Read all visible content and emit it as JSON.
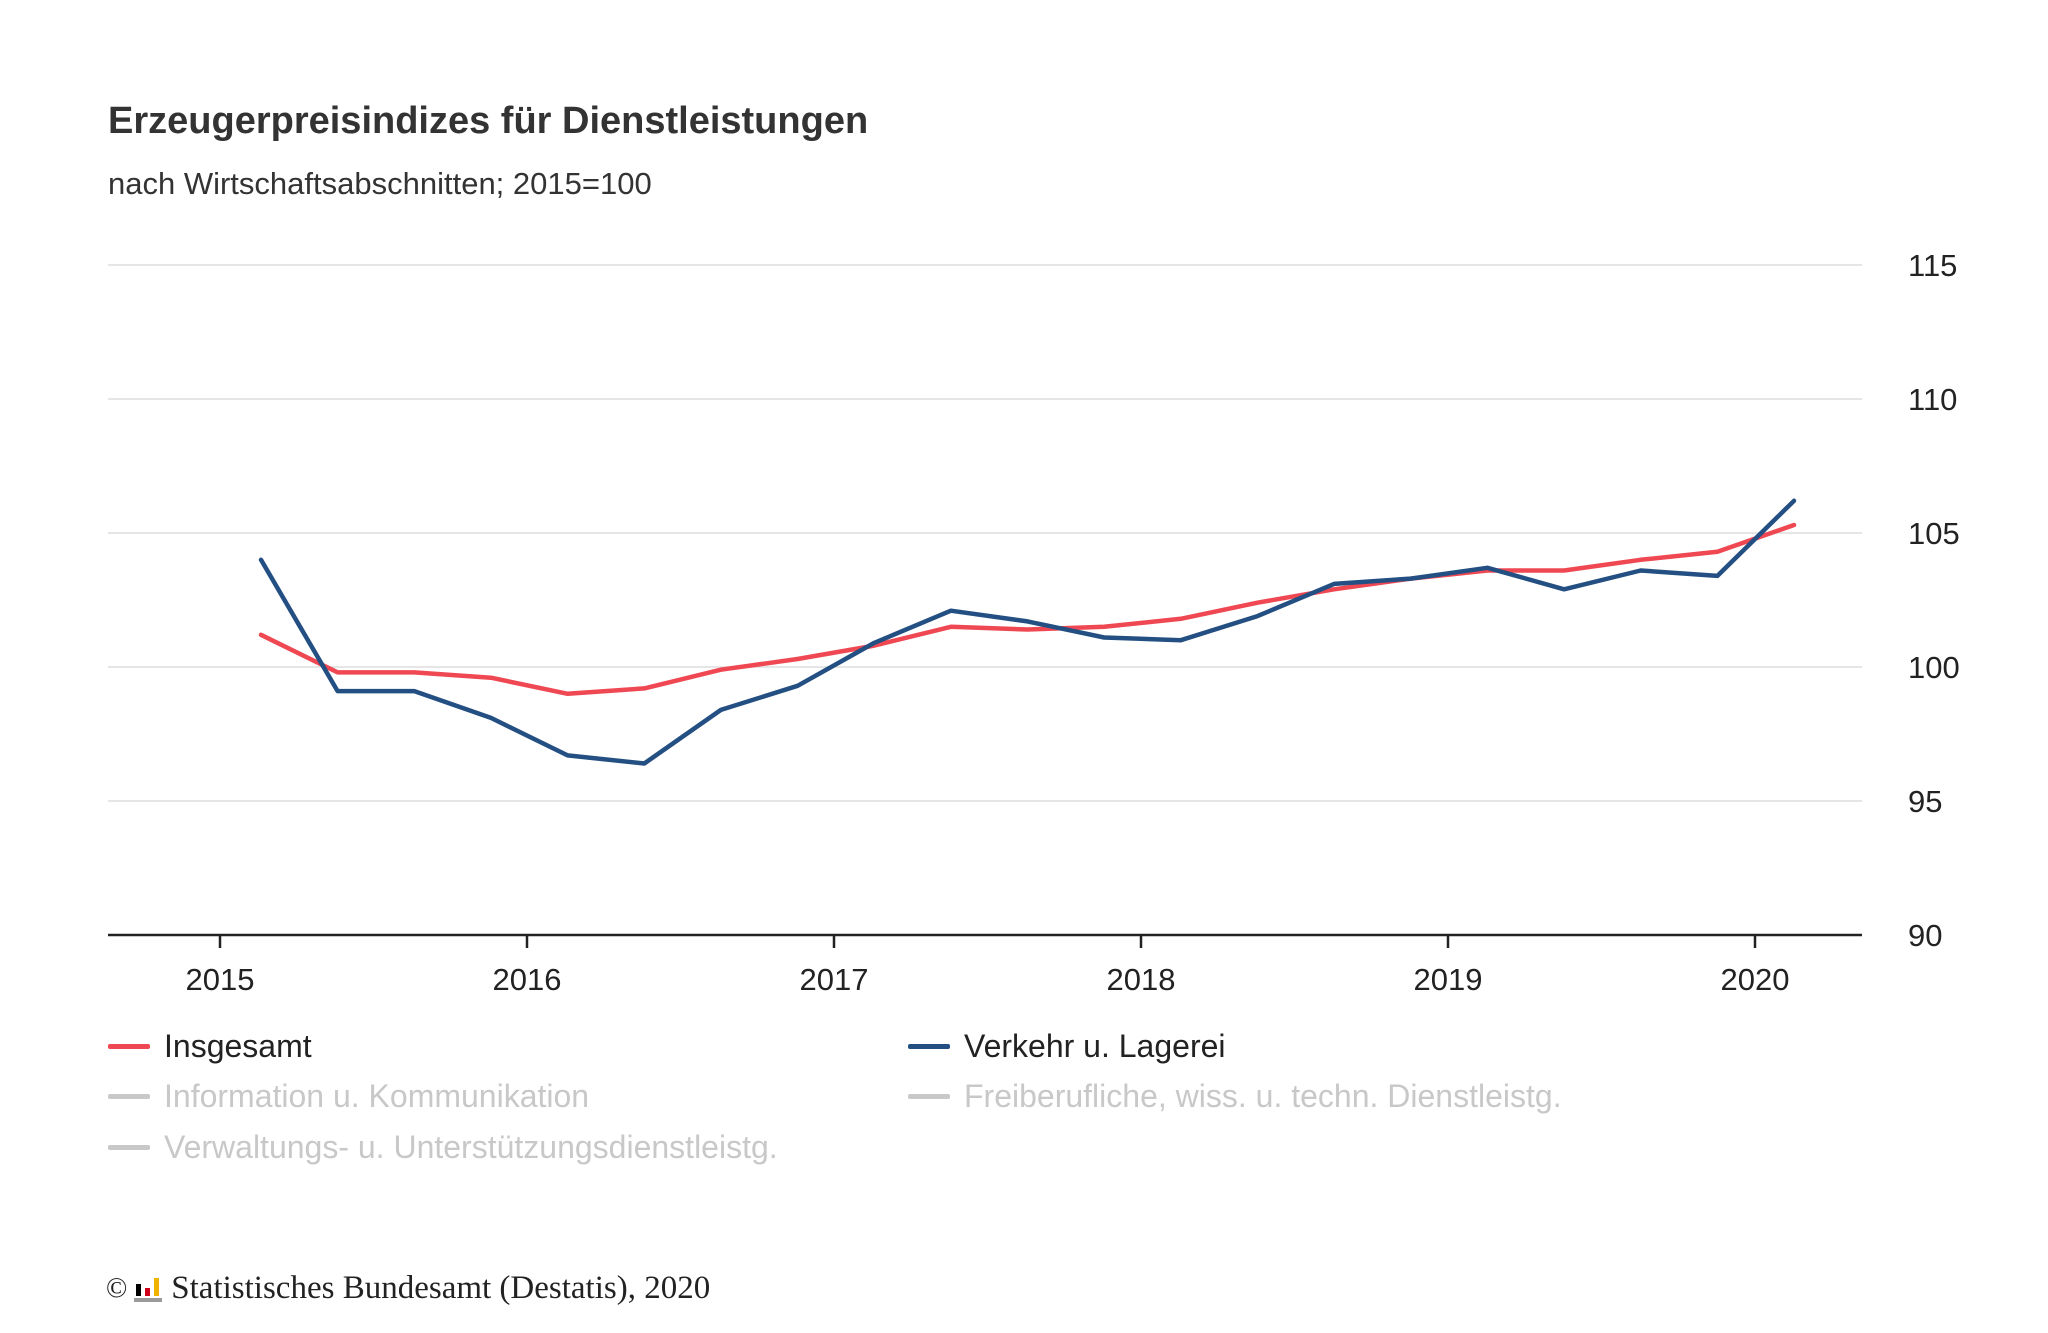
{
  "header": {
    "title": "Erzeugerpreisindizes für Dienstleistungen",
    "subtitle": "nach Wirtschaftsabschnitten; 2015=100"
  },
  "legend": [
    {
      "label": "Insgesamt",
      "color": "#ef4853",
      "active": true
    },
    {
      "label": "Verkehr u. Lagerei",
      "color": "#244f82",
      "active": true
    },
    {
      "label": "Information u. Kommunikation",
      "color": "#c8c8c8",
      "active": false
    },
    {
      "label": "Freiberufliche, wiss. u. techn. Dienstleistg.",
      "color": "#c8c8c8",
      "active": false
    },
    {
      "label": "Verwaltungs- u. Unterstützungsdienstleistg.",
      "color": "#c8c8c8",
      "active": false
    }
  ],
  "footer": {
    "copyright_symbol": "©",
    "source": "Statistisches Bundesamt (Destatis), 2020"
  },
  "chart_data": {
    "type": "line",
    "title": "Erzeugerpreisindizes für Dienstleistungen",
    "subtitle": "nach Wirtschaftsabschnitten; 2015=100",
    "x": [
      "2015-Q1",
      "2015-Q2",
      "2015-Q3",
      "2015-Q4",
      "2016-Q1",
      "2016-Q2",
      "2016-Q3",
      "2016-Q4",
      "2017-Q1",
      "2017-Q2",
      "2017-Q3",
      "2017-Q4",
      "2018-Q1",
      "2018-Q2",
      "2018-Q3",
      "2018-Q4",
      "2019-Q1",
      "2019-Q2",
      "2019-Q3",
      "2019-Q4",
      "2020-Q1"
    ],
    "x_tick_labels": [
      "2015",
      "2016",
      "2017",
      "2018",
      "2019",
      "2020"
    ],
    "y_ticks": [
      90,
      95,
      100,
      105,
      110,
      115
    ],
    "ylim": [
      90,
      115
    ],
    "y_axis_position": "right",
    "grid": true,
    "legend_position": "bottom",
    "series": [
      {
        "name": "Insgesamt",
        "color": "#ef4853",
        "values": [
          101.2,
          99.8,
          99.8,
          99.6,
          99.0,
          99.2,
          99.9,
          100.3,
          100.8,
          101.5,
          101.4,
          101.5,
          101.8,
          102.4,
          102.9,
          103.3,
          103.6,
          103.6,
          104.0,
          104.3,
          105.3
        ]
      },
      {
        "name": "Verkehr u. Lagerei",
        "color": "#244f82",
        "values": [
          104.0,
          99.1,
          99.1,
          98.1,
          96.7,
          96.4,
          98.4,
          99.3,
          100.9,
          102.1,
          101.7,
          101.1,
          101.0,
          101.9,
          103.1,
          103.3,
          103.7,
          102.9,
          103.6,
          103.4,
          106.2
        ]
      }
    ]
  }
}
